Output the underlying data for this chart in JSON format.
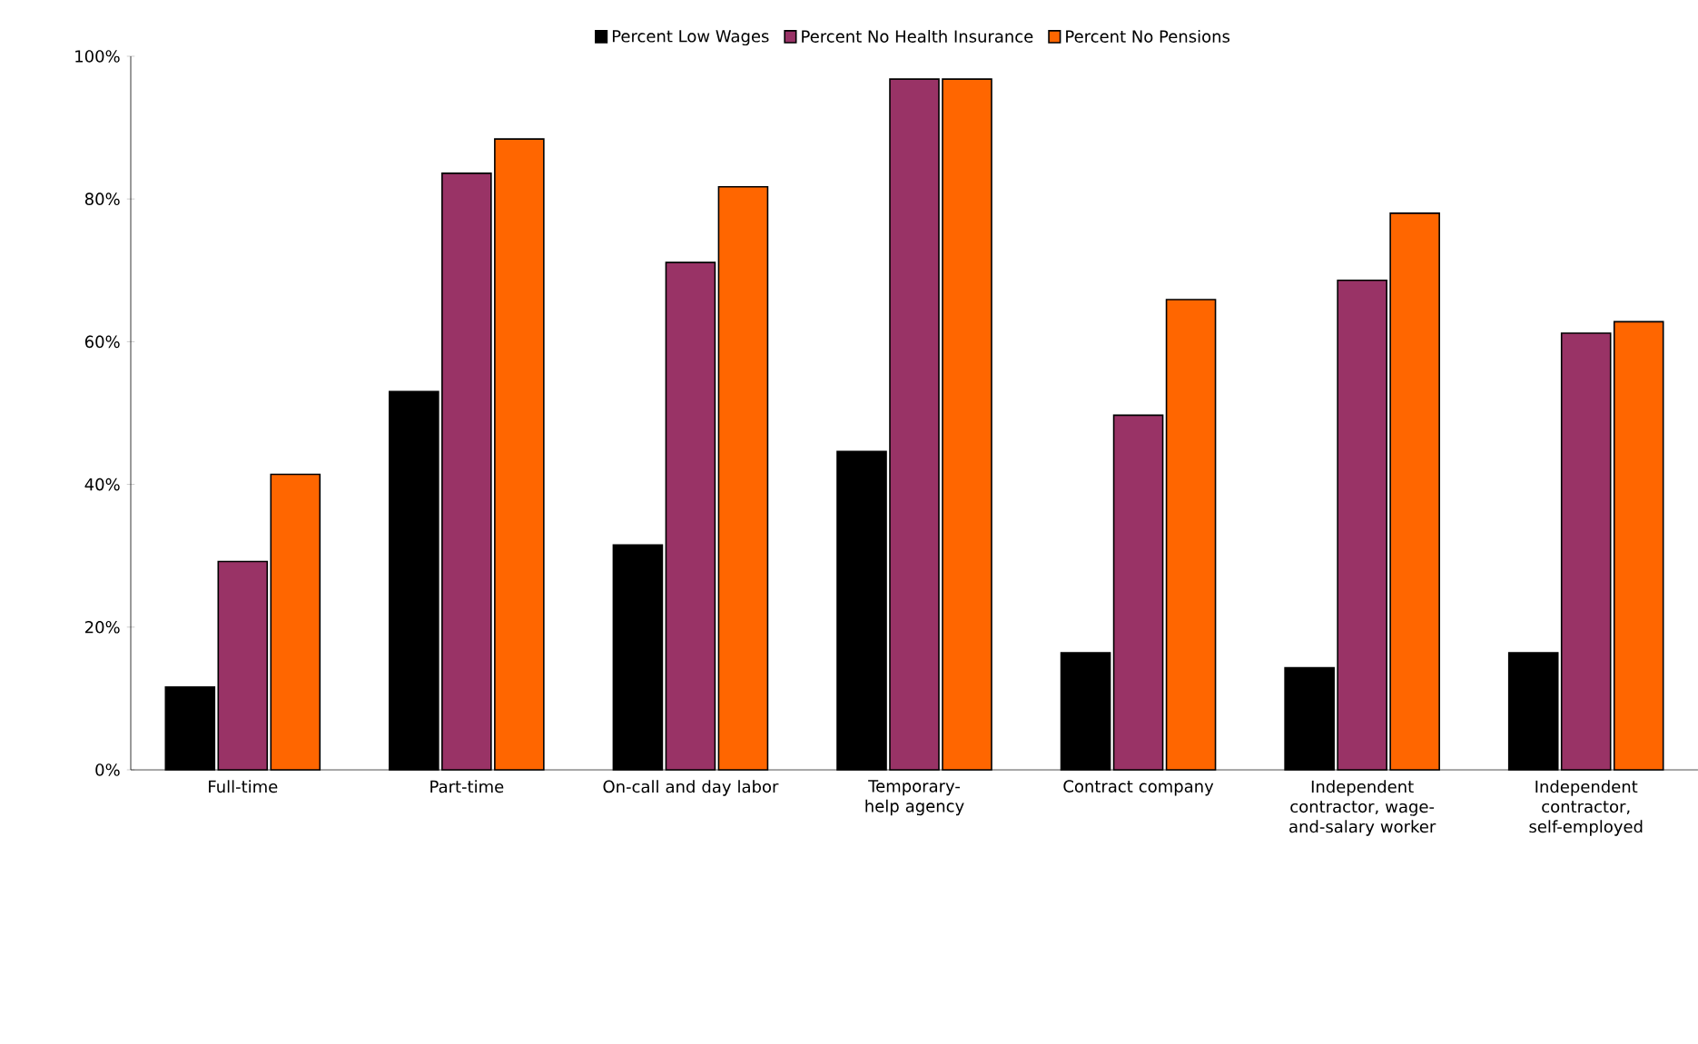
{
  "chart_data": {
    "type": "bar",
    "categories": [
      "Full-time",
      "Part-time",
      "On-call and day labor",
      "Temporary-help agency",
      "Contract company",
      "Independent contractor, wage-and-salary worker",
      "Independent contractor, self-employed"
    ],
    "series": [
      {
        "name": "Percent Low Wages",
        "color": "#000000",
        "values": [
          11.6,
          53,
          31.5,
          44.6,
          16.4,
          14.3,
          16.4
        ]
      },
      {
        "name": "Percent No Health Insurance",
        "color": "#993366",
        "values": [
          29.2,
          83.6,
          71.1,
          96.8,
          49.7,
          68.6,
          61.2
        ]
      },
      {
        "name": "Percent No Pensions",
        "color": "#ff6600",
        "values": [
          41.4,
          88.4,
          81.7,
          96.8,
          65.9,
          78,
          62.8
        ]
      }
    ],
    "ylim": [
      0,
      100
    ],
    "yticks": [
      {
        "value": 0,
        "label": "0%"
      },
      {
        "value": 20,
        "label": "20%"
      },
      {
        "value": 40,
        "label": "40%"
      },
      {
        "value": 60,
        "label": "60%"
      },
      {
        "value": 80,
        "label": "80%"
      },
      {
        "value": 100,
        "label": "100%"
      }
    ],
    "grid": false,
    "legend": "top"
  }
}
